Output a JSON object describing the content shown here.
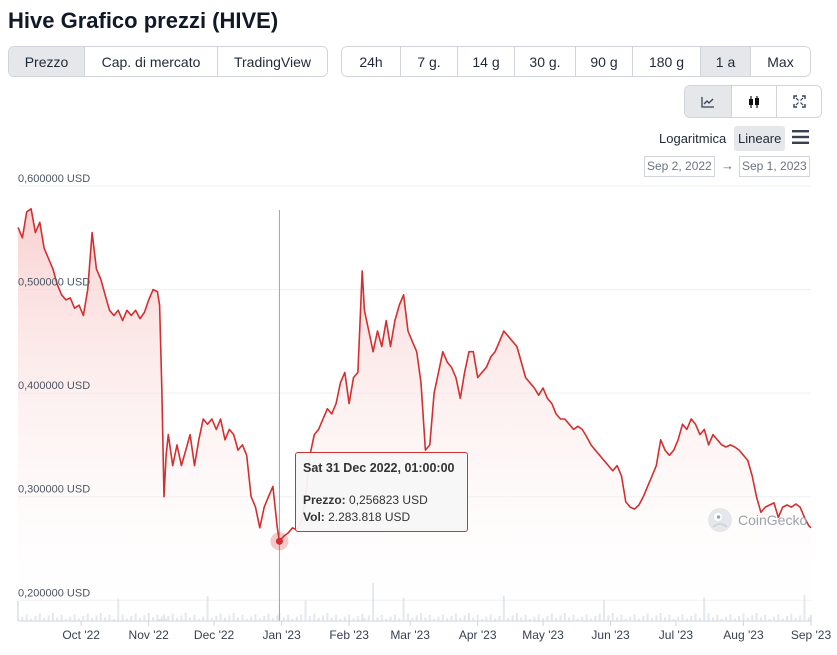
{
  "title": "Hive Grafico prezzi (HIVE)",
  "view_tabs": [
    {
      "label": "Prezzo",
      "active": true
    },
    {
      "label": "Cap. di mercato",
      "active": false
    },
    {
      "label": "TradingView",
      "active": false
    }
  ],
  "range_tabs": [
    {
      "label": "24h",
      "active": false
    },
    {
      "label": "7 g.",
      "active": false
    },
    {
      "label": "14 g",
      "active": false
    },
    {
      "label": "30 g.",
      "active": false
    },
    {
      "label": "90 g",
      "active": false
    },
    {
      "label": "180 g",
      "active": false
    },
    {
      "label": "1 a",
      "active": true
    },
    {
      "label": "Max",
      "active": false
    }
  ],
  "chart_types": [
    {
      "icon": "line-chart-icon",
      "active": true
    },
    {
      "icon": "candlestick-icon",
      "active": false
    },
    {
      "icon": "fullscreen-icon",
      "active": false
    }
  ],
  "scale": {
    "log_label": "Logaritmica",
    "linear_label": "Lineare",
    "active": "linear"
  },
  "date_range": {
    "from": "Sep 2, 2022",
    "arrow": "→",
    "to": "Sep 1, 2023"
  },
  "tooltip": {
    "date": "Sat 31 Dec 2022, 01:00:00",
    "price_label": "Prezzo:",
    "price_value": "0,256823 USD",
    "volume_label": "Vol:",
    "volume_value": "2.283.818 USD"
  },
  "watermark": "CoinGecko",
  "colors": {
    "line": "#d32f2f",
    "accent_fill": "#fde2e2",
    "grid": "#eef0f3"
  },
  "chart_data": {
    "type": "line",
    "title": "",
    "xlabel": "",
    "ylabel": "",
    "ylim": [
      0.18,
      0.6
    ],
    "y_ticks": [
      {
        "value": 0.6,
        "label": "0,600000 USD"
      },
      {
        "value": 0.5,
        "label": "0,500000 USD"
      },
      {
        "value": 0.4,
        "label": "0,400000 USD"
      },
      {
        "value": 0.3,
        "label": "0,300000 USD"
      },
      {
        "value": 0.2,
        "label": "0,200000 USD"
      }
    ],
    "x_range": [
      "2022-09-02",
      "2023-09-01"
    ],
    "x_ticks": [
      {
        "date": "2022-10-01",
        "label": "Oct '22"
      },
      {
        "date": "2022-11-01",
        "label": "Nov '22"
      },
      {
        "date": "2022-12-01",
        "label": "Dec '22"
      },
      {
        "date": "2023-01-01",
        "label": "Jan '23"
      },
      {
        "date": "2023-02-01",
        "label": "Feb '23"
      },
      {
        "date": "2023-03-01",
        "label": "Mar '23"
      },
      {
        "date": "2023-04-01",
        "label": "Apr '23"
      },
      {
        "date": "2023-05-01",
        "label": "May '23"
      },
      {
        "date": "2023-06-01",
        "label": "Jun '23"
      },
      {
        "date": "2023-07-01",
        "label": "Jul '23"
      },
      {
        "date": "2023-08-01",
        "label": "Aug '23"
      },
      {
        "date": "2023-09-01",
        "label": "Sep '23"
      }
    ],
    "grid": true,
    "series": [
      {
        "values": [
          [
            "2022-09-02",
            0.56
          ],
          [
            "2022-09-04",
            0.55
          ],
          [
            "2022-09-06",
            0.575
          ],
          [
            "2022-09-08",
            0.578
          ],
          [
            "2022-09-10",
            0.555
          ],
          [
            "2022-09-12",
            0.565
          ],
          [
            "2022-09-14",
            0.54
          ],
          [
            "2022-09-16",
            0.53
          ],
          [
            "2022-09-18",
            0.52
          ],
          [
            "2022-09-20",
            0.505
          ],
          [
            "2022-09-22",
            0.495
          ],
          [
            "2022-09-24",
            0.49
          ],
          [
            "2022-09-26",
            0.492
          ],
          [
            "2022-09-28",
            0.482
          ],
          [
            "2022-09-30",
            0.485
          ],
          [
            "2022-10-02",
            0.475
          ],
          [
            "2022-10-04",
            0.5
          ],
          [
            "2022-10-06",
            0.555
          ],
          [
            "2022-10-08",
            0.52
          ],
          [
            "2022-10-10",
            0.51
          ],
          [
            "2022-10-12",
            0.495
          ],
          [
            "2022-10-14",
            0.48
          ],
          [
            "2022-10-16",
            0.475
          ],
          [
            "2022-10-18",
            0.48
          ],
          [
            "2022-10-20",
            0.47
          ],
          [
            "2022-10-22",
            0.48
          ],
          [
            "2022-10-24",
            0.475
          ],
          [
            "2022-10-26",
            0.48
          ],
          [
            "2022-10-28",
            0.472
          ],
          [
            "2022-10-30",
            0.478
          ],
          [
            "2022-11-01",
            0.49
          ],
          [
            "2022-11-03",
            0.5
          ],
          [
            "2022-11-05",
            0.498
          ],
          [
            "2022-11-06",
            0.485
          ],
          [
            "2022-11-07",
            0.405
          ],
          [
            "2022-11-08",
            0.3
          ],
          [
            "2022-11-09",
            0.34
          ],
          [
            "2022-11-10",
            0.36
          ],
          [
            "2022-11-12",
            0.33
          ],
          [
            "2022-11-14",
            0.35
          ],
          [
            "2022-11-16",
            0.33
          ],
          [
            "2022-11-18",
            0.345
          ],
          [
            "2022-11-20",
            0.36
          ],
          [
            "2022-11-22",
            0.33
          ],
          [
            "2022-11-24",
            0.355
          ],
          [
            "2022-11-26",
            0.375
          ],
          [
            "2022-11-28",
            0.37
          ],
          [
            "2022-11-30",
            0.375
          ],
          [
            "2022-12-02",
            0.365
          ],
          [
            "2022-12-04",
            0.375
          ],
          [
            "2022-12-06",
            0.355
          ],
          [
            "2022-12-08",
            0.365
          ],
          [
            "2022-12-10",
            0.36
          ],
          [
            "2022-12-12",
            0.345
          ],
          [
            "2022-12-14",
            0.35
          ],
          [
            "2022-12-16",
            0.34
          ],
          [
            "2022-12-18",
            0.3
          ],
          [
            "2022-12-20",
            0.29
          ],
          [
            "2022-12-22",
            0.27
          ],
          [
            "2022-12-24",
            0.29
          ],
          [
            "2022-12-26",
            0.3
          ],
          [
            "2022-12-28",
            0.31
          ],
          [
            "2022-12-30",
            0.27
          ],
          [
            "2022-12-31",
            0.257
          ],
          [
            "2023-01-02",
            0.262
          ],
          [
            "2023-01-04",
            0.265
          ],
          [
            "2023-01-06",
            0.27
          ],
          [
            "2023-01-08",
            0.268
          ],
          [
            "2023-01-10",
            0.275
          ],
          [
            "2023-01-12",
            0.3
          ],
          [
            "2023-01-14",
            0.34
          ],
          [
            "2023-01-16",
            0.36
          ],
          [
            "2023-01-18",
            0.365
          ],
          [
            "2023-01-20",
            0.375
          ],
          [
            "2023-01-22",
            0.385
          ],
          [
            "2023-01-24",
            0.38
          ],
          [
            "2023-01-26",
            0.39
          ],
          [
            "2023-01-28",
            0.41
          ],
          [
            "2023-01-30",
            0.42
          ],
          [
            "2023-02-01",
            0.39
          ],
          [
            "2023-02-03",
            0.415
          ],
          [
            "2023-02-05",
            0.42
          ],
          [
            "2023-02-07",
            0.518
          ],
          [
            "2023-02-08",
            0.48
          ],
          [
            "2023-02-10",
            0.46
          ],
          [
            "2023-02-12",
            0.44
          ],
          [
            "2023-02-14",
            0.46
          ],
          [
            "2023-02-16",
            0.445
          ],
          [
            "2023-02-18",
            0.47
          ],
          [
            "2023-02-20",
            0.445
          ],
          [
            "2023-02-22",
            0.47
          ],
          [
            "2023-02-24",
            0.485
          ],
          [
            "2023-02-26",
            0.495
          ],
          [
            "2023-02-28",
            0.46
          ],
          [
            "2023-03-02",
            0.45
          ],
          [
            "2023-03-04",
            0.44
          ],
          [
            "2023-03-06",
            0.41
          ],
          [
            "2023-03-08",
            0.345
          ],
          [
            "2023-03-10",
            0.35
          ],
          [
            "2023-03-12",
            0.4
          ],
          [
            "2023-03-14",
            0.42
          ],
          [
            "2023-03-16",
            0.44
          ],
          [
            "2023-03-18",
            0.43
          ],
          [
            "2023-03-20",
            0.425
          ],
          [
            "2023-03-22",
            0.415
          ],
          [
            "2023-03-24",
            0.395
          ],
          [
            "2023-03-26",
            0.42
          ],
          [
            "2023-03-28",
            0.44
          ],
          [
            "2023-03-30",
            0.44
          ],
          [
            "2023-04-01",
            0.415
          ],
          [
            "2023-04-03",
            0.42
          ],
          [
            "2023-04-05",
            0.425
          ],
          [
            "2023-04-07",
            0.435
          ],
          [
            "2023-04-09",
            0.44
          ],
          [
            "2023-04-11",
            0.45
          ],
          [
            "2023-04-13",
            0.46
          ],
          [
            "2023-04-15",
            0.455
          ],
          [
            "2023-04-17",
            0.45
          ],
          [
            "2023-04-19",
            0.445
          ],
          [
            "2023-04-21",
            0.43
          ],
          [
            "2023-04-23",
            0.415
          ],
          [
            "2023-04-25",
            0.41
          ],
          [
            "2023-04-27",
            0.405
          ],
          [
            "2023-04-29",
            0.398
          ],
          [
            "2023-05-01",
            0.405
          ],
          [
            "2023-05-03",
            0.395
          ],
          [
            "2023-05-05",
            0.39
          ],
          [
            "2023-05-07",
            0.38
          ],
          [
            "2023-05-09",
            0.375
          ],
          [
            "2023-05-11",
            0.375
          ],
          [
            "2023-05-13",
            0.37
          ],
          [
            "2023-05-15",
            0.365
          ],
          [
            "2023-05-17",
            0.368
          ],
          [
            "2023-05-19",
            0.365
          ],
          [
            "2023-05-21",
            0.358
          ],
          [
            "2023-05-23",
            0.35
          ],
          [
            "2023-05-25",
            0.345
          ],
          [
            "2023-05-27",
            0.34
          ],
          [
            "2023-05-29",
            0.335
          ],
          [
            "2023-05-31",
            0.33
          ],
          [
            "2023-06-02",
            0.325
          ],
          [
            "2023-06-04",
            0.33
          ],
          [
            "2023-06-06",
            0.32
          ],
          [
            "2023-06-08",
            0.295
          ],
          [
            "2023-06-10",
            0.29
          ],
          [
            "2023-06-12",
            0.288
          ],
          [
            "2023-06-14",
            0.292
          ],
          [
            "2023-06-16",
            0.3
          ],
          [
            "2023-06-18",
            0.31
          ],
          [
            "2023-06-20",
            0.32
          ],
          [
            "2023-06-22",
            0.33
          ],
          [
            "2023-06-24",
            0.355
          ],
          [
            "2023-06-26",
            0.345
          ],
          [
            "2023-06-28",
            0.34
          ],
          [
            "2023-06-30",
            0.345
          ],
          [
            "2023-07-02",
            0.355
          ],
          [
            "2023-07-04",
            0.37
          ],
          [
            "2023-07-06",
            0.365
          ],
          [
            "2023-07-08",
            0.375
          ],
          [
            "2023-07-10",
            0.37
          ],
          [
            "2023-07-12",
            0.36
          ],
          [
            "2023-07-14",
            0.365
          ],
          [
            "2023-07-16",
            0.35
          ],
          [
            "2023-07-18",
            0.36
          ],
          [
            "2023-07-20",
            0.355
          ],
          [
            "2023-07-22",
            0.35
          ],
          [
            "2023-07-24",
            0.348
          ],
          [
            "2023-07-26",
            0.35
          ],
          [
            "2023-07-28",
            0.348
          ],
          [
            "2023-07-30",
            0.345
          ],
          [
            "2023-08-01",
            0.34
          ],
          [
            "2023-08-03",
            0.335
          ],
          [
            "2023-08-05",
            0.32
          ],
          [
            "2023-08-07",
            0.3
          ],
          [
            "2023-08-09",
            0.285
          ],
          [
            "2023-08-11",
            0.29
          ],
          [
            "2023-08-13",
            0.292
          ],
          [
            "2023-08-15",
            0.294
          ],
          [
            "2023-08-17",
            0.28
          ],
          [
            "2023-08-19",
            0.29
          ],
          [
            "2023-08-21",
            0.292
          ],
          [
            "2023-08-23",
            0.29
          ],
          [
            "2023-08-25",
            0.293
          ],
          [
            "2023-08-27",
            0.29
          ],
          [
            "2023-08-29",
            0.28
          ],
          [
            "2023-08-31",
            0.272
          ],
          [
            "2023-09-01",
            0.27
          ]
        ]
      }
    ]
  }
}
